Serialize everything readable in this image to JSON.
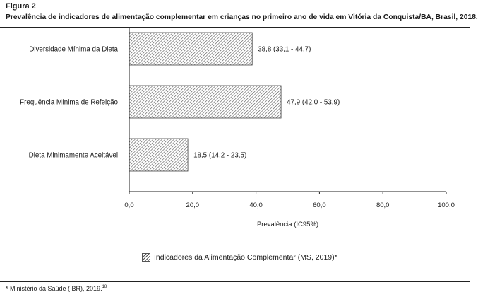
{
  "figure_label": "Figura 2",
  "caption": "Prevalência de indicadores de alimentação complementar em crianças no primeiro ano de vida em Vitória da Conquista/BA, Brasil, 2018.",
  "footnote": "* Ministério da Saúde ( BR), 2019.",
  "footnote_ref": "18",
  "chart_data": {
    "type": "bar",
    "orientation": "horizontal",
    "categories": [
      "Diversidade Mínima da Dieta",
      "Frequência Mínima de Refeição",
      "Dieta Minimamente Aceitável"
    ],
    "values": [
      38.8,
      47.9,
      18.5
    ],
    "value_labels": [
      "38,8 (33,1 - 44,7)",
      "47,9 (42,0 - 53,9)",
      "18,5 (14,2 - 23,5)"
    ],
    "ci_low": [
      33.1,
      42.0,
      14.2
    ],
    "ci_high": [
      44.7,
      53.9,
      23.5
    ],
    "xlim": [
      0,
      100
    ],
    "xticks": [
      0,
      20,
      40,
      60,
      80,
      100
    ],
    "xtick_labels": [
      "0,0",
      "20,0",
      "40,0",
      "60,0",
      "80,0",
      "100,0"
    ],
    "xlabel": "Prevalência (IC95%)",
    "ylabel": "",
    "legend": "Indicadores da Alimentação Complementar (MS, 2019)*",
    "legend_position": "bottom",
    "grid": false,
    "bar_fill": "diagonal hatch",
    "bar_color": "#555555"
  }
}
